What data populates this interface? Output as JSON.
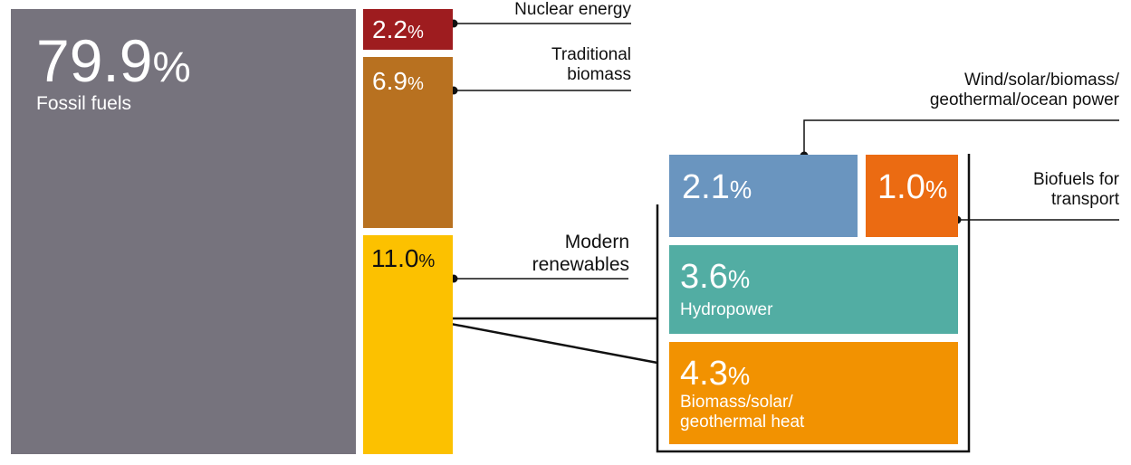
{
  "chart_data": {
    "type": "treemap",
    "title": "",
    "unit": "%",
    "segments": [
      {
        "key": "fossil",
        "label": "Fossil fuels",
        "value": 79.9,
        "value_text": "79.9",
        "color": "#76737d"
      },
      {
        "key": "nuclear",
        "label": "Nuclear energy",
        "value": 2.2,
        "value_text": "2.2",
        "color": "#9e1c1f"
      },
      {
        "key": "traditional",
        "label": "Traditional biomass",
        "value": 6.9,
        "value_text": "6.9",
        "color": "#b87120"
      },
      {
        "key": "modern",
        "label": "Modern renewables",
        "value": 11.0,
        "value_text": "11.0",
        "color": "#fcc100",
        "children": [
          {
            "key": "wind",
            "label": "Wind/solar/biomass/ geothermal/ocean power",
            "value": 2.1,
            "value_text": "2.1",
            "color": "#6a95bf"
          },
          {
            "key": "biofuels",
            "label": "Biofuels for transport",
            "value": 1.0,
            "value_text": "1.0",
            "color": "#eb6b12"
          },
          {
            "key": "hydro",
            "label": "Hydropower",
            "value": 3.6,
            "value_text": "3.6",
            "color": "#52ada3"
          },
          {
            "key": "heat",
            "label": "Biomass/solar/ geothermal heat",
            "value": 4.3,
            "value_text": "4.3",
            "color": "#f29201"
          }
        ]
      }
    ]
  },
  "callouts": {
    "nuclear": [
      "Nuclear energy"
    ],
    "traditional": [
      "Traditional",
      "biomass"
    ],
    "modern": [
      "Modern",
      "renewables"
    ],
    "wind": [
      "Wind/solar/biomass/",
      "geothermal/ocean power"
    ],
    "biofuels": [
      "Biofuels for",
      "transport"
    ]
  },
  "inbox": {
    "fossil": "Fossil fuels",
    "hydro": "Hydropower",
    "heat": [
      "Biomass/solar/",
      "geothermal heat"
    ]
  }
}
